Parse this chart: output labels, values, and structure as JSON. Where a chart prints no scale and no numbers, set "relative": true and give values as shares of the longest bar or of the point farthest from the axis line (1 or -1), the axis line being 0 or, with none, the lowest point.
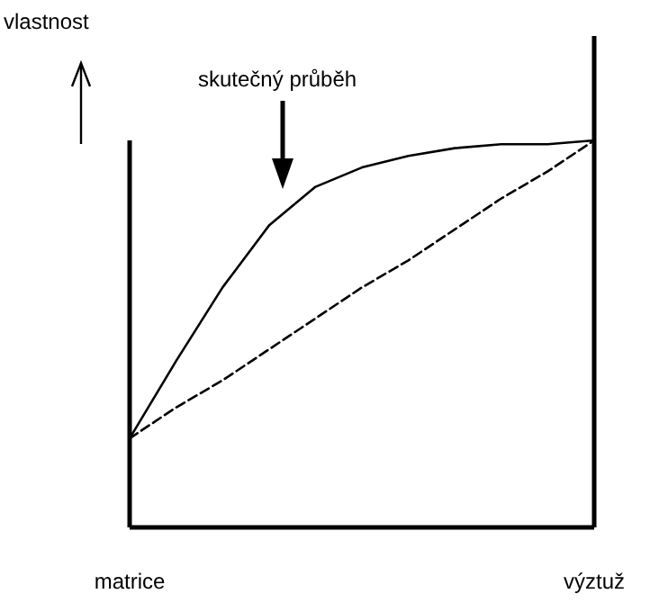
{
  "chart_data": {
    "type": "line",
    "relative": true,
    "ylabel": "vlastnost",
    "annotations": [
      "skutečný průběh"
    ],
    "categories": [
      "matrice",
      null,
      null,
      null,
      null,
      null,
      null,
      null,
      null,
      null,
      "výztuž"
    ],
    "series": [
      {
        "color": "#000000",
        "line_style": "solid",
        "values": [
          0.23,
          0.43,
          0.62,
          0.78,
          0.88,
          0.93,
          0.96,
          0.98,
          0.99,
          0.99,
          1
        ]
      },
      {
        "color": "#000000",
        "line_style": "dashed",
        "values": [
          0.23,
          0.31,
          0.38,
          0.46,
          0.54,
          0.62,
          0.69,
          0.77,
          0.85,
          0.92,
          1
        ]
      }
    ],
    "marker": "none"
  }
}
